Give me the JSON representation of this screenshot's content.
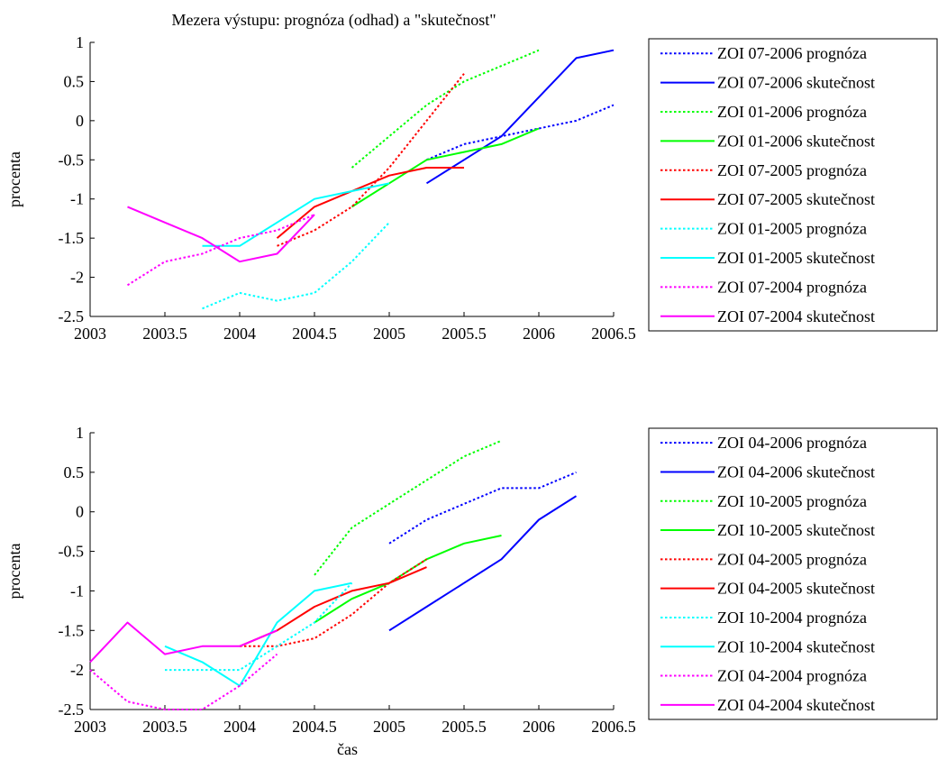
{
  "chart_data": [
    {
      "type": "line",
      "title": "Mezera výstupu: prognóza (odhad) a \"skutečnost\"",
      "xlabel": "",
      "ylabel": "procenta",
      "xlim": [
        2003,
        2006.5
      ],
      "ylim": [
        -2.5,
        1
      ],
      "xticks": [
        "2003",
        "2003.5",
        "2004",
        "2004.5",
        "2005",
        "2005.5",
        "2006",
        "2006.5"
      ],
      "yticks": [
        "1",
        "0.5",
        "0",
        "-0.5",
        "-1",
        "-1.5",
        "-2",
        "-2.5"
      ],
      "legend_position": "outside-right",
      "grid": false,
      "series": [
        {
          "name": "ZOI 07-2006 prognóza",
          "color": "#0000ff",
          "style": "dotted",
          "x": [
            2005.25,
            2005.5,
            2005.75,
            2006,
            2006.25,
            2006.5
          ],
          "y": [
            -0.5,
            -0.3,
            -0.2,
            -0.1,
            0.0,
            0.2
          ]
        },
        {
          "name": "ZOI 07-2006 skutečnost",
          "color": "#0000ff",
          "style": "solid",
          "x": [
            2005.25,
            2005.5,
            2005.75,
            2006,
            2006.25,
            2006.5
          ],
          "y": [
            -0.8,
            -0.5,
            -0.2,
            0.3,
            0.8,
            0.9
          ]
        },
        {
          "name": "ZOI 01-2006 prognóza",
          "color": "#00ff00",
          "style": "dotted",
          "x": [
            2004.75,
            2005,
            2005.25,
            2005.5,
            2005.75,
            2006
          ],
          "y": [
            -0.6,
            -0.2,
            0.2,
            0.5,
            0.7,
            0.9
          ]
        },
        {
          "name": "ZOI 01-2006 skutečnost",
          "color": "#00ff00",
          "style": "solid",
          "x": [
            2004.75,
            2005,
            2005.25,
            2005.5,
            2005.75,
            2006
          ],
          "y": [
            -1.1,
            -0.8,
            -0.5,
            -0.4,
            -0.3,
            -0.1
          ]
        },
        {
          "name": "ZOI 07-2005 prognóza",
          "color": "#ff0000",
          "style": "dotted",
          "x": [
            2004.25,
            2004.5,
            2004.75,
            2005,
            2005.25,
            2005.5
          ],
          "y": [
            -1.6,
            -1.4,
            -1.1,
            -0.6,
            0.0,
            0.6
          ]
        },
        {
          "name": "ZOI 07-2005 skutečnost",
          "color": "#ff0000",
          "style": "solid",
          "x": [
            2004.25,
            2004.5,
            2004.75,
            2005,
            2005.25,
            2005.5
          ],
          "y": [
            -1.5,
            -1.1,
            -0.9,
            -0.7,
            -0.6,
            -0.6
          ]
        },
        {
          "name": "ZOI 01-2005 prognóza",
          "color": "#00ffff",
          "style": "dotted",
          "x": [
            2003.75,
            2004,
            2004.25,
            2004.5,
            2004.75,
            2005
          ],
          "y": [
            -2.4,
            -2.2,
            -2.3,
            -2.2,
            -1.8,
            -1.3
          ]
        },
        {
          "name": "ZOI 01-2005 skutečnost",
          "color": "#00ffff",
          "style": "solid",
          "x": [
            2003.75,
            2004,
            2004.25,
            2004.5,
            2004.75,
            2005
          ],
          "y": [
            -1.6,
            -1.6,
            -1.3,
            -1.0,
            -0.9,
            -0.8
          ]
        },
        {
          "name": "ZOI 07-2004 prognóza",
          "color": "#ff00ff",
          "style": "dotted",
          "x": [
            2003.25,
            2003.5,
            2003.75,
            2004,
            2004.25,
            2004.5
          ],
          "y": [
            -2.1,
            -1.8,
            -1.7,
            -1.5,
            -1.4,
            -1.2
          ]
        },
        {
          "name": "ZOI 07-2004 skutečnost",
          "color": "#ff00ff",
          "style": "solid",
          "x": [
            2003.25,
            2003.5,
            2003.75,
            2004,
            2004.25,
            2004.5
          ],
          "y": [
            -1.1,
            -1.3,
            -1.5,
            -1.8,
            -1.7,
            -1.2
          ]
        }
      ]
    },
    {
      "type": "line",
      "title": "",
      "xlabel": "čas",
      "ylabel": "procenta",
      "xlim": [
        2003,
        2006.5
      ],
      "ylim": [
        -2.5,
        1
      ],
      "xticks": [
        "2003",
        "2003.5",
        "2004",
        "2004.5",
        "2005",
        "2005.5",
        "2006",
        "2006.5"
      ],
      "yticks": [
        "1",
        "0.5",
        "0",
        "-0.5",
        "-1",
        "-1.5",
        "-2",
        "-2.5"
      ],
      "legend_position": "outside-right",
      "grid": false,
      "series": [
        {
          "name": "ZOI 04-2006 prognóza",
          "color": "#0000ff",
          "style": "dotted",
          "x": [
            2005,
            2005.25,
            2005.5,
            2005.75,
            2006,
            2006.25
          ],
          "y": [
            -0.4,
            -0.1,
            0.1,
            0.3,
            0.3,
            0.5
          ]
        },
        {
          "name": "ZOI 04-2006 skutečnost",
          "color": "#0000ff",
          "style": "solid",
          "x": [
            2005,
            2005.25,
            2005.5,
            2005.75,
            2006,
            2006.25
          ],
          "y": [
            -1.5,
            -1.2,
            -0.9,
            -0.6,
            -0.1,
            0.2
          ]
        },
        {
          "name": "ZOI 10-2005 prognóza",
          "color": "#00ff00",
          "style": "dotted",
          "x": [
            2004.5,
            2004.75,
            2005,
            2005.25,
            2005.5,
            2005.75
          ],
          "y": [
            -0.8,
            -0.2,
            0.1,
            0.4,
            0.7,
            0.9
          ]
        },
        {
          "name": "ZOI 10-2005 skutečnost",
          "color": "#00ff00",
          "style": "solid",
          "x": [
            2004.5,
            2004.75,
            2005,
            2005.25,
            2005.5,
            2005.75
          ],
          "y": [
            -1.4,
            -1.1,
            -0.9,
            -0.6,
            -0.4,
            -0.3
          ]
        },
        {
          "name": "ZOI 04-2005 prognóza",
          "color": "#ff0000",
          "style": "dotted",
          "x": [
            2004,
            2004.25,
            2004.5,
            2004.75,
            2005,
            2005.25
          ],
          "y": [
            -1.7,
            -1.7,
            -1.6,
            -1.3,
            -0.9,
            -0.6
          ]
        },
        {
          "name": "ZOI 04-2005 skutečnost",
          "color": "#ff0000",
          "style": "solid",
          "x": [
            2004,
            2004.25,
            2004.5,
            2004.75,
            2005,
            2005.25
          ],
          "y": [
            -1.7,
            -1.5,
            -1.2,
            -1.0,
            -0.9,
            -0.7
          ]
        },
        {
          "name": "ZOI 10-2004 prognóza",
          "color": "#00ffff",
          "style": "dotted",
          "x": [
            2003.5,
            2003.75,
            2004,
            2004.25,
            2004.5,
            2004.75
          ],
          "y": [
            -2.0,
            -2.0,
            -2.0,
            -1.7,
            -1.4,
            -0.9
          ]
        },
        {
          "name": "ZOI 10-2004 skutečnost",
          "color": "#00ffff",
          "style": "solid",
          "x": [
            2003.5,
            2003.75,
            2004,
            2004.25,
            2004.5,
            2004.75
          ],
          "y": [
            -1.7,
            -1.9,
            -2.2,
            -1.4,
            -1.0,
            -0.9
          ]
        },
        {
          "name": "ZOI 04-2004 prognóza",
          "color": "#ff00ff",
          "style": "dotted",
          "x": [
            2003,
            2003.25,
            2003.5,
            2003.75,
            2004,
            2004.25
          ],
          "y": [
            -2.0,
            -2.4,
            -2.5,
            -2.5,
            -2.2,
            -1.8
          ]
        },
        {
          "name": "ZOI 04-2004 skutečnost",
          "color": "#ff00ff",
          "style": "solid",
          "x": [
            2003,
            2003.25,
            2003.5,
            2003.75,
            2004,
            2004.25
          ],
          "y": [
            -1.9,
            -1.4,
            -1.8,
            -1.7,
            -1.7,
            -1.5
          ]
        }
      ]
    }
  ]
}
